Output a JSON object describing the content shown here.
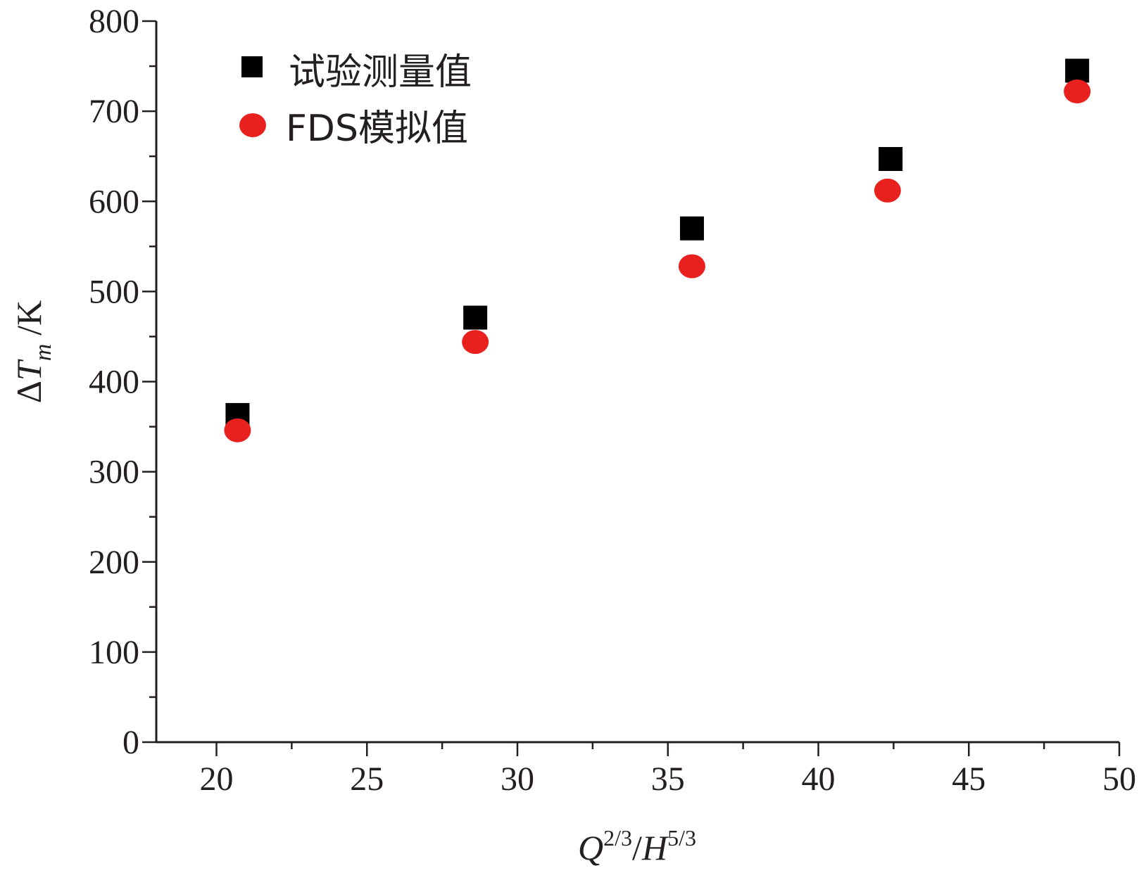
{
  "chart_data": {
    "type": "scatter",
    "xlabel": {
      "base1": "Q",
      "sup1": "2/3",
      "sep": "/",
      "base2": "H",
      "sup2": "5/3"
    },
    "ylabel": {
      "delta": "Δ",
      "base": "T",
      "sub": "m",
      "unit": "/K"
    },
    "xlim": [
      18,
      50
    ],
    "ylim": [
      0,
      800
    ],
    "xticks": [
      20,
      25,
      30,
      35,
      40,
      45,
      50
    ],
    "yticks": [
      0,
      100,
      200,
      300,
      400,
      500,
      600,
      700,
      800
    ],
    "grid": false,
    "legend_position": "top-left",
    "series": [
      {
        "name": "试验测量值",
        "marker": "square",
        "color": "#000000",
        "points": [
          {
            "x": 20.7,
            "y": 363
          },
          {
            "x": 28.6,
            "y": 471
          },
          {
            "x": 35.8,
            "y": 570
          },
          {
            "x": 42.4,
            "y": 647
          },
          {
            "x": 48.6,
            "y": 745
          }
        ]
      },
      {
        "name": "FDS模拟值",
        "marker": "circle",
        "color": "#e8201e",
        "points": [
          {
            "x": 20.7,
            "y": 346
          },
          {
            "x": 28.6,
            "y": 444
          },
          {
            "x": 35.8,
            "y": 528
          },
          {
            "x": 42.3,
            "y": 612
          },
          {
            "x": 48.6,
            "y": 722
          }
        ]
      }
    ]
  }
}
